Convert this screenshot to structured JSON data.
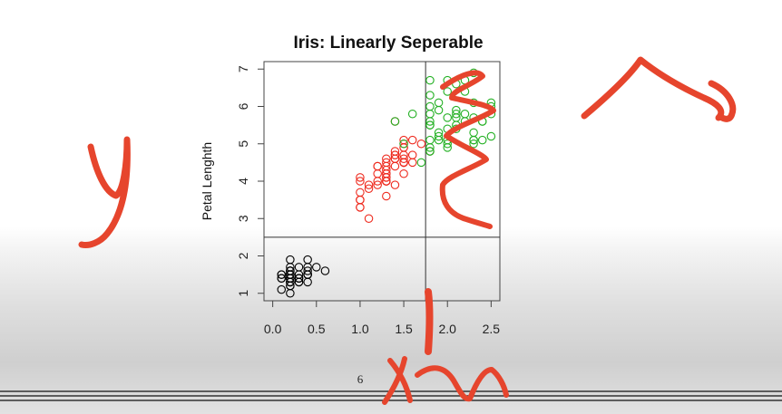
{
  "chart_data": {
    "type": "scatter",
    "title": "Iris: Linearly Seperable",
    "xlabel": "",
    "ylabel": "Petal Lenghth",
    "xlim": [
      -0.1,
      2.6
    ],
    "ylim": [
      0.8,
      7.2
    ],
    "x_ticks": [
      "0.0",
      "0.5",
      "1.0",
      "1.5",
      "2.0",
      "2.5"
    ],
    "y_ticks": [
      "1",
      "2",
      "3",
      "4",
      "5",
      "6",
      "7"
    ],
    "grid": false,
    "legend": "none",
    "reference_lines": {
      "vertical_x": 1.75,
      "horizontal_y": 2.5
    },
    "series": [
      {
        "color": "#000000",
        "points": [
          [
            0.2,
            1.4
          ],
          [
            0.2,
            1.4
          ],
          [
            0.2,
            1.3
          ],
          [
            0.2,
            1.5
          ],
          [
            0.2,
            1.4
          ],
          [
            0.4,
            1.7
          ],
          [
            0.3,
            1.4
          ],
          [
            0.2,
            1.5
          ],
          [
            0.2,
            1.4
          ],
          [
            0.1,
            1.5
          ],
          [
            0.2,
            1.5
          ],
          [
            0.2,
            1.6
          ],
          [
            0.1,
            1.4
          ],
          [
            0.1,
            1.1
          ],
          [
            0.2,
            1.2
          ],
          [
            0.4,
            1.5
          ],
          [
            0.4,
            1.3
          ],
          [
            0.3,
            1.4
          ],
          [
            0.3,
            1.7
          ],
          [
            0.3,
            1.5
          ],
          [
            0.2,
            1.7
          ],
          [
            0.4,
            1.5
          ],
          [
            0.2,
            1.0
          ],
          [
            0.5,
            1.7
          ],
          [
            0.2,
            1.9
          ],
          [
            0.2,
            1.6
          ],
          [
            0.4,
            1.6
          ],
          [
            0.2,
            1.5
          ],
          [
            0.2,
            1.4
          ],
          [
            0.2,
            1.6
          ],
          [
            0.2,
            1.6
          ],
          [
            0.4,
            1.5
          ],
          [
            0.1,
            1.5
          ],
          [
            0.2,
            1.4
          ],
          [
            0.2,
            1.5
          ],
          [
            0.2,
            1.2
          ],
          [
            0.2,
            1.3
          ],
          [
            0.1,
            1.4
          ],
          [
            0.2,
            1.3
          ],
          [
            0.2,
            1.5
          ],
          [
            0.3,
            1.3
          ],
          [
            0.3,
            1.3
          ],
          [
            0.2,
            1.3
          ],
          [
            0.6,
            1.6
          ],
          [
            0.4,
            1.9
          ],
          [
            0.3,
            1.4
          ],
          [
            0.2,
            1.6
          ],
          [
            0.2,
            1.4
          ],
          [
            0.2,
            1.5
          ],
          [
            0.2,
            1.4
          ]
        ]
      },
      {
        "color": "#ee2a1e",
        "points": [
          [
            1.4,
            4.7
          ],
          [
            1.5,
            4.5
          ],
          [
            1.5,
            4.9
          ],
          [
            1.3,
            4.0
          ],
          [
            1.5,
            4.6
          ],
          [
            1.3,
            4.5
          ],
          [
            1.6,
            4.7
          ],
          [
            1.0,
            3.3
          ],
          [
            1.3,
            4.6
          ],
          [
            1.4,
            3.9
          ],
          [
            1.0,
            3.5
          ],
          [
            1.5,
            4.2
          ],
          [
            1.0,
            4.0
          ],
          [
            1.4,
            4.7
          ],
          [
            1.3,
            3.6
          ],
          [
            1.4,
            4.4
          ],
          [
            1.5,
            4.5
          ],
          [
            1.0,
            4.1
          ],
          [
            1.5,
            4.5
          ],
          [
            1.1,
            3.9
          ],
          [
            1.3,
            4.0
          ],
          [
            1.2,
            4.4
          ],
          [
            1.4,
            4.6
          ],
          [
            1.3,
            4.0
          ],
          [
            1.4,
            4.8
          ],
          [
            1.7,
            5.0
          ],
          [
            1.5,
            4.5
          ],
          [
            1.0,
            3.5
          ],
          [
            1.1,
            3.8
          ],
          [
            1.0,
            3.7
          ],
          [
            1.2,
            3.9
          ],
          [
            1.6,
            5.1
          ],
          [
            1.5,
            4.5
          ],
          [
            1.6,
            4.5
          ],
          [
            1.5,
            4.7
          ],
          [
            1.3,
            4.4
          ],
          [
            1.3,
            4.1
          ],
          [
            1.3,
            4.0
          ],
          [
            1.2,
            4.4
          ],
          [
            1.4,
            4.6
          ],
          [
            1.2,
            4.0
          ],
          [
            1.0,
            3.3
          ],
          [
            1.3,
            4.2
          ],
          [
            1.2,
            4.2
          ],
          [
            1.3,
            4.3
          ],
          [
            1.3,
            4.2
          ],
          [
            1.1,
            3.0
          ],
          [
            1.3,
            4.1
          ],
          [
            1.5,
            4.9
          ],
          [
            1.8,
            4.8
          ],
          [
            1.5,
            5.0
          ],
          [
            1.4,
            5.6
          ],
          [
            1.5,
            5.1
          ]
        ]
      },
      {
        "color": "#23b023",
        "points": [
          [
            2.5,
            6.0
          ],
          [
            1.9,
            5.1
          ],
          [
            2.1,
            5.9
          ],
          [
            1.8,
            5.6
          ],
          [
            2.2,
            5.8
          ],
          [
            2.1,
            6.6
          ],
          [
            1.8,
            6.3
          ],
          [
            1.8,
            5.8
          ],
          [
            2.5,
            6.1
          ],
          [
            2.0,
            5.1
          ],
          [
            1.9,
            5.3
          ],
          [
            2.1,
            5.5
          ],
          [
            2.0,
            5.0
          ],
          [
            2.4,
            5.1
          ],
          [
            2.3,
            5.3
          ],
          [
            1.8,
            5.5
          ],
          [
            2.2,
            6.7
          ],
          [
            2.3,
            6.9
          ],
          [
            2.0,
            5.7
          ],
          [
            2.0,
            4.9
          ],
          [
            1.8,
            6.7
          ],
          [
            2.1,
            5.7
          ],
          [
            1.8,
            6.0
          ],
          [
            1.8,
            4.8
          ],
          [
            2.1,
            5.8
          ],
          [
            1.6,
            5.8
          ],
          [
            1.9,
            6.1
          ],
          [
            2.0,
            6.4
          ],
          [
            2.2,
            5.6
          ],
          [
            1.5,
            5.0
          ],
          [
            1.4,
            5.6
          ],
          [
            2.3,
            6.1
          ],
          [
            2.4,
            5.6
          ],
          [
            1.8,
            5.5
          ],
          [
            2.1,
            5.4
          ],
          [
            2.4,
            5.6
          ],
          [
            2.3,
            5.1
          ],
          [
            1.9,
            5.9
          ],
          [
            2.3,
            5.7
          ],
          [
            2.5,
            5.2
          ],
          [
            2.3,
            5.0
          ],
          [
            1.9,
            5.2
          ],
          [
            2.0,
            5.4
          ],
          [
            2.3,
            5.1
          ],
          [
            1.8,
            5.1
          ],
          [
            2.5,
            5.8
          ],
          [
            2.2,
            6.4
          ],
          [
            1.8,
            4.9
          ],
          [
            2.0,
            6.7
          ],
          [
            1.8,
            4.8
          ],
          [
            1.7,
            4.5
          ]
        ]
      }
    ]
  },
  "page": {
    "number": "6"
  },
  "annotations": {
    "ink_color": "#e6452d",
    "y_scribble": "y",
    "x_scribble": "x"
  }
}
